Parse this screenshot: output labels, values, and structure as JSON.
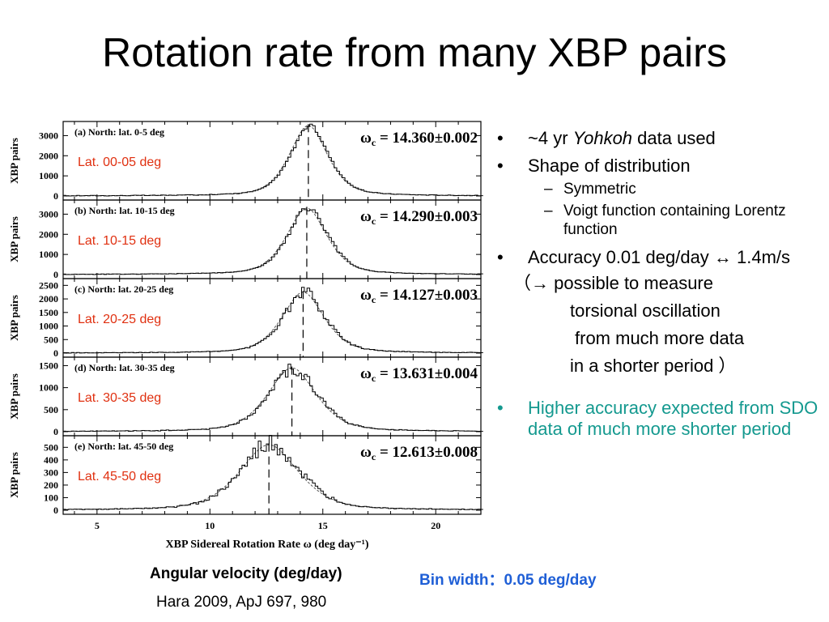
{
  "title": "Rotation rate from many XBP pairs",
  "bullets": {
    "b1_pre": "~4 yr ",
    "b1_italic": "Yohkoh",
    "b1_post": " data used",
    "b2": "Shape of distribution",
    "sub1": "Symmetric",
    "sub2": "Voigt function containing Lorentz function",
    "b3": "Accuracy 0.01 deg/day ↔ 1.4m/s",
    "p1": "（→ possible to measure",
    "p2": "torsional oscillation",
    "p3": "from much more data",
    "p4": "in a shorter period ）",
    "b4": "Higher accuracy  expected from SDO data of much more shorter period",
    "bullet_char": "•",
    "dash_char": "–"
  },
  "captions": {
    "angular": "Angular velocity (deg/day)",
    "reference": "Hara 2009,  ApJ 697, 980",
    "bin_width": "Bin width：0.05 deg/day"
  },
  "colors": {
    "lat_label": "#e03010",
    "teal": "#14998f",
    "bin_blue": "#1f5fd6"
  },
  "chart_data": {
    "type": "line",
    "xlabel": "XBP Sidereal Rotation Rate ω (deg day⁻¹)",
    "xlim": [
      3.5,
      22
    ],
    "xticks": [
      5,
      10,
      15,
      20
    ],
    "ylabel": "XBP pairs",
    "panels": [
      {
        "label": "(a) North: lat. 0-5 deg",
        "lat": "Lat. 00-05 deg",
        "omega": "14.360±0.002",
        "omega_value": 14.36,
        "peak": 3500,
        "gamma": 0.9,
        "sigma": 0.9,
        "ylim": [
          0,
          3500
        ],
        "yticks": [
          0,
          1000,
          2000,
          3000
        ]
      },
      {
        "label": "(b) North: lat. 10-15 deg",
        "lat": "Lat. 10-15 deg",
        "omega": "14.290±0.003",
        "omega_value": 14.29,
        "peak": 3300,
        "gamma": 0.95,
        "sigma": 0.95,
        "ylim": [
          0,
          3500
        ],
        "yticks": [
          0,
          1000,
          2000,
          3000
        ]
      },
      {
        "label": "(c) North: lat. 20-25 deg",
        "lat": "Lat. 20-25 deg",
        "omega": "14.127±0.003",
        "omega_value": 14.127,
        "peak": 2250,
        "gamma": 1.0,
        "sigma": 1.0,
        "ylim": [
          0,
          2600
        ],
        "yticks": [
          0,
          500,
          1000,
          1500,
          2000,
          2500
        ]
      },
      {
        "label": "(d) North: lat. 30-35 deg",
        "lat": "Lat. 30-35 deg",
        "omega": "13.631±0.004",
        "omega_value": 13.631,
        "peak": 1450,
        "gamma": 1.15,
        "sigma": 1.15,
        "ylim": [
          0,
          1600
        ],
        "yticks": [
          0,
          500,
          1000,
          1500
        ]
      },
      {
        "label": "(e) North: lat. 45-50 deg",
        "lat": "Lat. 45-50 deg",
        "omega": "12.613±0.008",
        "omega_value": 12.613,
        "peak": 520,
        "gamma": 1.4,
        "sigma": 1.4,
        "ylim": [
          0,
          560
        ],
        "yticks": [
          0,
          100,
          200,
          300,
          400,
          500
        ]
      }
    ]
  }
}
